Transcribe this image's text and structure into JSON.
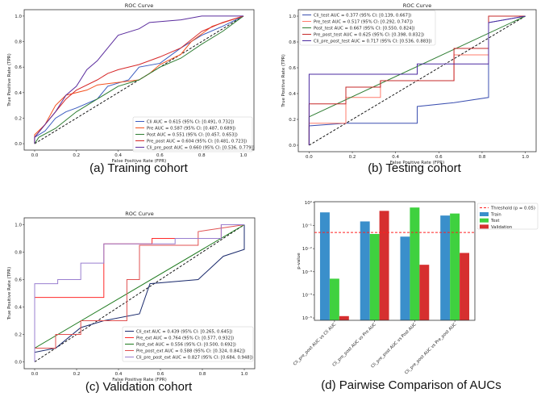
{
  "chart_data": [
    {
      "type": "line",
      "panel": "a",
      "caption": "(a) Training cohort",
      "title": "ROC Curve",
      "xlabel": "False Positive Rate (FPR)",
      "ylabel": "True Positive Rate (TPR)",
      "xticks": [
        "0.0",
        "0.2",
        "0.4",
        "0.6",
        "0.8",
        "1.0"
      ],
      "yticks": [
        "0.0",
        "0.2",
        "0.4",
        "0.6",
        "0.8",
        "1.0"
      ],
      "xlim": [
        -0.05,
        1.05
      ],
      "ylim": [
        -0.05,
        1.05
      ],
      "legend_position": "lower-right",
      "series": [
        {
          "name": "Cli AUC = 0.615 (95% CI: [0.491, 0.732])",
          "color": "#3b5bbf",
          "points": [
            [
              0,
              0
            ],
            [
              0,
              0.05
            ],
            [
              0.05,
              0.1
            ],
            [
              0.1,
              0.2
            ],
            [
              0.15,
              0.25
            ],
            [
              0.2,
              0.28
            ],
            [
              0.3,
              0.35
            ],
            [
              0.35,
              0.45
            ],
            [
              0.45,
              0.5
            ],
            [
              0.5,
              0.6
            ],
            [
              0.6,
              0.63
            ],
            [
              0.7,
              0.75
            ],
            [
              0.8,
              0.85
            ],
            [
              0.9,
              0.92
            ],
            [
              1,
              1
            ]
          ]
        },
        {
          "name": "Pre AUC = 0.587 (95% CI: [0.487, 0.689])",
          "color": "#f4511e",
          "points": [
            [
              0,
              0
            ],
            [
              0,
              0.07
            ],
            [
              0.05,
              0.15
            ],
            [
              0.1,
              0.3
            ],
            [
              0.15,
              0.38
            ],
            [
              0.25,
              0.42
            ],
            [
              0.3,
              0.46
            ],
            [
              0.4,
              0.48
            ],
            [
              0.5,
              0.5
            ],
            [
              0.55,
              0.55
            ],
            [
              0.6,
              0.62
            ],
            [
              0.7,
              0.7
            ],
            [
              0.75,
              0.8
            ],
            [
              0.85,
              0.92
            ],
            [
              1,
              1
            ]
          ]
        },
        {
          "name": "Post AUC = 0.551 (95% CI: [0.457, 0.653])",
          "color": "#2e7d32",
          "points": [
            [
              0,
              0
            ],
            [
              0.02,
              0.05
            ],
            [
              0.1,
              0.12
            ],
            [
              0.2,
              0.25
            ],
            [
              0.3,
              0.35
            ],
            [
              0.4,
              0.45
            ],
            [
              0.5,
              0.5
            ],
            [
              0.6,
              0.6
            ],
            [
              0.7,
              0.67
            ],
            [
              0.8,
              0.78
            ],
            [
              0.9,
              0.88
            ],
            [
              1,
              1
            ]
          ]
        },
        {
          "name": "Pre_post AUC = 0.604 (95% CI: [0.481, 0.723])",
          "color": "#d62728",
          "points": [
            [
              0,
              0
            ],
            [
              0,
              0.05
            ],
            [
              0.05,
              0.15
            ],
            [
              0.1,
              0.25
            ],
            [
              0.15,
              0.35
            ],
            [
              0.2,
              0.42
            ],
            [
              0.3,
              0.5
            ],
            [
              0.35,
              0.55
            ],
            [
              0.4,
              0.58
            ],
            [
              0.5,
              0.62
            ],
            [
              0.6,
              0.68
            ],
            [
              0.7,
              0.75
            ],
            [
              0.8,
              0.88
            ],
            [
              0.9,
              0.95
            ],
            [
              1,
              1
            ]
          ]
        },
        {
          "name": "Cli_pre_post AUC = 0.660 (95% CI: [0.536, 0.779])",
          "color": "#5b2d9e",
          "points": [
            [
              0,
              0
            ],
            [
              0,
              0.05
            ],
            [
              0.05,
              0.15
            ],
            [
              0.1,
              0.25
            ],
            [
              0.15,
              0.38
            ],
            [
              0.2,
              0.45
            ],
            [
              0.25,
              0.58
            ],
            [
              0.3,
              0.65
            ],
            [
              0.35,
              0.75
            ],
            [
              0.4,
              0.85
            ],
            [
              0.5,
              0.9
            ],
            [
              0.55,
              0.95
            ],
            [
              0.7,
              0.97
            ],
            [
              0.8,
              1
            ],
            [
              1,
              1
            ]
          ]
        }
      ]
    },
    {
      "type": "line",
      "panel": "b",
      "caption": "(b) Testing cohort",
      "title": "ROC Curve",
      "xlabel": "False Positive Rate (FPR)",
      "ylabel": "True Positive Rate (TPR)",
      "xticks": [
        "0.0",
        "0.2",
        "0.4",
        "0.6",
        "0.8",
        "1.0"
      ],
      "yticks": [
        "0.0",
        "0.2",
        "0.4",
        "0.6",
        "0.8",
        "1.0"
      ],
      "xlim": [
        -0.05,
        1.05
      ],
      "ylim": [
        -0.05,
        1.05
      ],
      "legend_position": "upper-left",
      "series": [
        {
          "name": "Cli_test AUC = 0.377 (95% CI: [0.139, 0.667])",
          "color": "#3b4fb0",
          "points": [
            [
              0,
              0
            ],
            [
              0,
              0.15
            ],
            [
              0.17,
              0.17
            ],
            [
              0.5,
              0.17
            ],
            [
              0.5,
              0.3
            ],
            [
              0.67,
              0.33
            ],
            [
              0.83,
              0.37
            ],
            [
              0.83,
              0.95
            ],
            [
              1,
              1
            ]
          ]
        },
        {
          "name": "Pre_test AUC = 0.517 (95% CI: [0.292, 0.747])",
          "color": "#ff7b6b",
          "points": [
            [
              0,
              0
            ],
            [
              0,
              0.17
            ],
            [
              0.17,
              0.17
            ],
            [
              0.17,
              0.37
            ],
            [
              0.33,
              0.37
            ],
            [
              0.33,
              0.5
            ],
            [
              0.67,
              0.5
            ],
            [
              0.67,
              0.7
            ],
            [
              0.83,
              0.7
            ],
            [
              0.83,
              1
            ],
            [
              1,
              1
            ]
          ]
        },
        {
          "name": "Post_test AUC = 0.667 (95% CI: [0.550, 0.824])",
          "color": "#2e7d32",
          "points": [
            [
              0,
              0
            ],
            [
              0,
              0.22
            ],
            [
              1,
              1
            ]
          ]
        },
        {
          "name": "Pre_post_test AUC = 0.625 (95% CI: [0.398, 0.832])",
          "color": "#c62828",
          "points": [
            [
              0,
              0
            ],
            [
              0,
              0.32
            ],
            [
              0.17,
              0.32
            ],
            [
              0.17,
              0.45
            ],
            [
              0.33,
              0.45
            ],
            [
              0.33,
              0.5
            ],
            [
              0.67,
              0.5
            ],
            [
              0.67,
              0.75
            ],
            [
              0.83,
              0.75
            ],
            [
              0.83,
              1
            ],
            [
              1,
              1
            ]
          ]
        },
        {
          "name": "Cli_pre_post_test AUC = 0.717 (95% CI: [0.536, 0.883])",
          "color": "#4b2aa0",
          "points": [
            [
              0,
              0
            ],
            [
              0,
              0.55
            ],
            [
              0.5,
              0.55
            ],
            [
              0.5,
              0.63
            ],
            [
              0.83,
              0.63
            ],
            [
              0.83,
              0.95
            ],
            [
              1,
              1
            ]
          ]
        }
      ]
    },
    {
      "type": "line",
      "panel": "c",
      "caption": "(c) Validation cohort",
      "title": "ROC Curve",
      "xlabel": "False Positive Rate (FPR)",
      "ylabel": "True Positive Rate (TPR)",
      "xticks": [
        "0.0",
        "0.2",
        "0.4",
        "0.6",
        "0.8",
        "1.0"
      ],
      "yticks": [
        "0.0",
        "0.2",
        "0.4",
        "0.6",
        "0.8",
        "1.0"
      ],
      "xlim": [
        -0.05,
        1.05
      ],
      "ylim": [
        -0.05,
        1.05
      ],
      "legend_position": "lower-right",
      "series": [
        {
          "name": "Cli_ext AUC = 0.439 (95% CI: [0.265, 0.645])",
          "color": "#1a2a6c",
          "points": [
            [
              0,
              0
            ],
            [
              0,
              0.07
            ],
            [
              0.1,
              0.1
            ],
            [
              0.22,
              0.25
            ],
            [
              0.33,
              0.3
            ],
            [
              0.5,
              0.35
            ],
            [
              0.55,
              0.57
            ],
            [
              0.78,
              0.6
            ],
            [
              0.9,
              0.77
            ],
            [
              1,
              0.82
            ],
            [
              1,
              1
            ]
          ]
        },
        {
          "name": "Pre_ext AUC = 0.764 (95% CI: [0.577, 0.932])",
          "color": "#ff2a2a",
          "points": [
            [
              0,
              0
            ],
            [
              0,
              0.47
            ],
            [
              0.33,
              0.47
            ],
            [
              0.33,
              0.86
            ],
            [
              0.56,
              0.86
            ],
            [
              0.56,
              0.9
            ],
            [
              0.89,
              0.9
            ],
            [
              0.89,
              1
            ],
            [
              1,
              1
            ]
          ]
        },
        {
          "name": "Post_ext AUC = 0.556 (95% CI: [0.500, 0.692])",
          "color": "#1e7a1e",
          "points": [
            [
              0,
              0
            ],
            [
              0,
              0.1
            ],
            [
              1,
              1
            ]
          ]
        },
        {
          "name": "Pre_post_ext AUC = 0.588 (95% CI: [0.324, 0.842])",
          "color": "#e05050",
          "points": [
            [
              0,
              0
            ],
            [
              0,
              0.1
            ],
            [
              0.1,
              0.1
            ],
            [
              0.1,
              0.2
            ],
            [
              0.22,
              0.2
            ],
            [
              0.22,
              0.3
            ],
            [
              0.44,
              0.3
            ],
            [
              0.44,
              0.6
            ],
            [
              0.5,
              0.6
            ],
            [
              0.5,
              0.85
            ],
            [
              0.78,
              0.85
            ],
            [
              0.78,
              0.95
            ],
            [
              1,
              1
            ]
          ]
        },
        {
          "name": "Cli_pre_post_ext AUC = 0.827 (95% CI: [0.684, 0.948])",
          "color": "#9a7fd0",
          "points": [
            [
              0,
              0
            ],
            [
              0,
              0.57
            ],
            [
              0.11,
              0.57
            ],
            [
              0.11,
              0.6
            ],
            [
              0.22,
              0.6
            ],
            [
              0.22,
              0.72
            ],
            [
              0.33,
              0.72
            ],
            [
              0.33,
              0.86
            ],
            [
              0.67,
              0.86
            ],
            [
              0.67,
              0.9
            ],
            [
              0.89,
              0.9
            ],
            [
              0.89,
              1
            ],
            [
              1,
              1
            ]
          ]
        }
      ]
    },
    {
      "type": "bar",
      "panel": "d",
      "caption": "(d) Pairwise Comparison of AUCs",
      "ylabel": "p-value",
      "yscale": "log",
      "ylim": [
        7.9e-06,
        1.07
      ],
      "yticks": [
        {
          "value": 1,
          "label": "10⁰"
        },
        {
          "value": 0.1,
          "label": "10⁻¹"
        },
        {
          "value": 0.01,
          "label": "10⁻²"
        },
        {
          "value": 0.001,
          "label": "10⁻³"
        },
        {
          "value": 0.0001,
          "label": "10⁻⁴"
        },
        {
          "value": 1e-05,
          "label": "10⁻⁵"
        }
      ],
      "categories": [
        "Cli_pre_post AUC vs Cli AUC",
        "Cli_pre_post AUC vs Pre AUC",
        "Cli_pre_post AUC vs Post AUC",
        "Cli_pre_post AUC vs Pre_post AUC"
      ],
      "series": [
        {
          "name": "Train",
          "color": "#3a8fcb",
          "values": [
            0.37,
            0.15,
            0.033,
            0.27
          ]
        },
        {
          "name": "Test",
          "color": "#3fd13f",
          "values": [
            0.0005,
            0.043,
            0.6,
            0.33
          ]
        },
        {
          "name": "Validation",
          "color": "#d62f2f",
          "values": [
            1.2e-05,
            0.43,
            0.002,
            0.0065
          ]
        }
      ],
      "threshold": {
        "label": "Threshold (p = 0.05)",
        "value": 0.05,
        "color": "#ff2020"
      },
      "legend_position": "outside-upper-right"
    }
  ]
}
